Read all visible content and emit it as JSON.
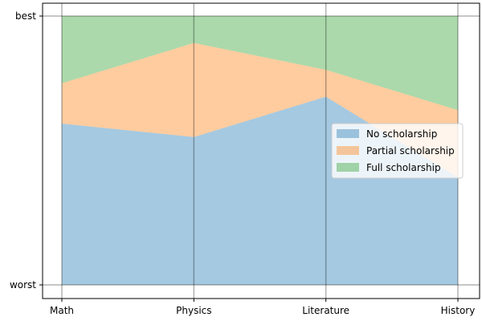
{
  "chart_data": {
    "type": "area",
    "stacked": true,
    "normalized": true,
    "categories": [
      "Math",
      "Physics",
      "Literature",
      "History"
    ],
    "series": [
      {
        "name": "No scholarship",
        "values": [
          0.6,
          0.55,
          0.7,
          0.4
        ],
        "color": "#1f77b4",
        "opacity": 0.4
      },
      {
        "name": "Partial scholarship",
        "values": [
          0.15,
          0.35,
          0.1,
          0.25
        ],
        "color": "#ff7f0e",
        "opacity": 0.4
      },
      {
        "name": "Full scholarship",
        "values": [
          0.25,
          0.1,
          0.2,
          0.35
        ],
        "color": "#2ca02c",
        "opacity": 0.4
      }
    ],
    "ylim": [
      0,
      1
    ],
    "yticks": [
      {
        "value": 0,
        "label": "worst"
      },
      {
        "value": 1,
        "label": "best"
      }
    ],
    "grid": true,
    "legend_position": "center-right"
  }
}
